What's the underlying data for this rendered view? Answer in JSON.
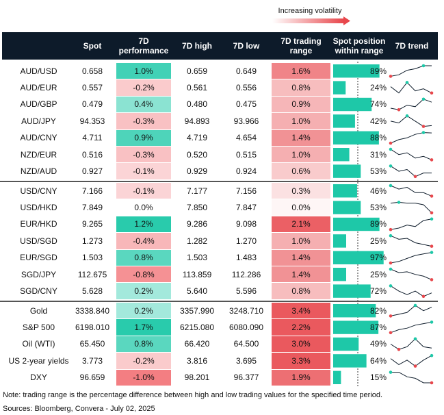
{
  "legend_label": "Increasing volatility",
  "header": [
    "",
    "Spot",
    "7D performance",
    "7D high",
    "7D low",
    "7D trading range",
    "Spot position within range",
    "7D trend"
  ],
  "groups": [
    [
      {
        "name": "AUD/USD",
        "spot": "0.658",
        "perf": "1.0%",
        "high": "0.659",
        "low": "0.649",
        "range": "1.6%",
        "position": 89,
        "position_label": "89%",
        "trend": [
          2,
          3,
          6,
          7,
          9,
          9
        ]
      },
      {
        "name": "AUD/EUR",
        "spot": "0.557",
        "perf": "-0.2%",
        "high": "0.561",
        "low": "0.556",
        "range": "0.8%",
        "position": 24,
        "position_label": "24%",
        "trend": [
          6,
          3,
          8,
          4,
          5,
          3
        ]
      },
      {
        "name": "AUD/GBP",
        "spot": "0.479",
        "perf": "0.4%",
        "high": "0.480",
        "low": "0.475",
        "range": "0.9%",
        "position": 74,
        "position_label": "74%",
        "trend": [
          3,
          2,
          5,
          4,
          9,
          7
        ]
      },
      {
        "name": "AUD/JPY",
        "spot": "94.353",
        "perf": "-0.3%",
        "high": "94.893",
        "low": "93.966",
        "range": "1.0%",
        "position": 42,
        "position_label": "42%",
        "trend": [
          5,
          4,
          8,
          5,
          2,
          2.5
        ]
      },
      {
        "name": "AUD/CNY",
        "spot": "4.711",
        "perf": "0.9%",
        "high": "4.719",
        "low": "4.654",
        "range": "1.4%",
        "position": 88,
        "position_label": "88%",
        "trend": [
          3,
          5,
          6,
          8,
          9,
          8.8
        ]
      },
      {
        "name": "NZD/EUR",
        "spot": "0.516",
        "perf": "-0.3%",
        "high": "0.520",
        "low": "0.515",
        "range": "1.0%",
        "position": 31,
        "position_label": "31%",
        "trend": [
          9,
          6,
          7,
          4,
          5,
          3
        ]
      },
      {
        "name": "NZD/AUD",
        "spot": "0.927",
        "perf": "-0.1%",
        "high": "0.929",
        "low": "0.924",
        "range": "0.6%",
        "position": 53,
        "position_label": "53%",
        "trend": [
          9,
          6,
          7,
          3,
          5,
          5
        ]
      }
    ],
    [
      {
        "name": "USD/CNY",
        "spot": "7.166",
        "perf": "-0.1%",
        "high": "7.177",
        "low": "7.156",
        "range": "0.3%",
        "position": 46,
        "position_label": "46%",
        "trend": [
          9,
          7,
          8,
          5,
          5,
          3
        ]
      },
      {
        "name": "USD/HKD",
        "spot": "7.849",
        "perf": "0.0%",
        "high": "7.850",
        "low": "7.847",
        "range": "0.0%",
        "position": 53,
        "position_label": "53%",
        "trend": [
          8,
          8.5,
          8,
          8,
          7,
          2
        ]
      },
      {
        "name": "EUR/HKD",
        "spot": "9.265",
        "perf": "1.2%",
        "high": "9.286",
        "low": "9.098",
        "range": "2.1%",
        "position": 89,
        "position_label": "89%",
        "trend": [
          2,
          3,
          5,
          4,
          8,
          9
        ]
      },
      {
        "name": "USD/SGD",
        "spot": "1.273",
        "perf": "-0.4%",
        "high": "1.282",
        "low": "1.270",
        "range": "1.0%",
        "position": 25,
        "position_label": "25%",
        "trend": [
          9,
          7,
          7.5,
          5,
          4,
          3
        ]
      },
      {
        "name": "EUR/SGD",
        "spot": "1.503",
        "perf": "0.8%",
        "high": "1.503",
        "low": "1.483",
        "range": "1.4%",
        "position": 97,
        "position_label": "97%",
        "trend": [
          2,
          3,
          5,
          7,
          8,
          9
        ]
      },
      {
        "name": "SGD/JPY",
        "spot": "112.675",
        "perf": "-0.8%",
        "high": "113.859",
        "low": "112.286",
        "range": "1.4%",
        "position": 25,
        "position_label": "25%",
        "trend": [
          9,
          7,
          7.5,
          6,
          5,
          3
        ]
      },
      {
        "name": "SGD/CNY",
        "spot": "5.628",
        "perf": "0.2%",
        "high": "5.640",
        "low": "5.596",
        "range": "0.8%",
        "position": 72,
        "position_label": "72%",
        "trend": [
          9,
          6,
          4,
          6,
          3,
          5
        ]
      }
    ],
    [
      {
        "name": "Gold",
        "spot": "3338.840",
        "perf": "0.2%",
        "high": "3357.990",
        "low": "3248.710",
        "range": "3.4%",
        "position": 82,
        "position_label": "82%",
        "trend": [
          3,
          4,
          5,
          9,
          6,
          8
        ]
      },
      {
        "name": "S&P 500",
        "spot": "6198.010",
        "perf": "1.7%",
        "high": "6215.080",
        "low": "6080.090",
        "range": "2.2%",
        "position": 87,
        "position_label": "87%",
        "trend": [
          2,
          4,
          5,
          7,
          8,
          9
        ]
      },
      {
        "name": "Oil (WTI)",
        "spot": "65.450",
        "perf": "0.8%",
        "high": "66.420",
        "low": "64.500",
        "range": "3.0%",
        "position": 49,
        "position_label": "49%",
        "trend": [
          6,
          4,
          5,
          8,
          5,
          4.5
        ]
      },
      {
        "name": "US 2-year yields",
        "spot": "3.773",
        "perf": "-0.2%",
        "high": "3.816",
        "low": "3.695",
        "range": "3.3%",
        "position": 64,
        "position_label": "64%",
        "trend": [
          7,
          3,
          6,
          2,
          6,
          9
        ]
      },
      {
        "name": "DXY",
        "spot": "96.659",
        "perf": "-1.0%",
        "high": "98.201",
        "low": "96.377",
        "range": "1.9%",
        "position": 15,
        "position_label": "15%",
        "trend": [
          9,
          9,
          6,
          5,
          2,
          2
        ]
      }
    ]
  ],
  "note": "Note: trading range is the percentage difference between high and low trading values for the specified time period.",
  "sources": "Sources: Bloomberg, Convera - July 02, 2025"
}
